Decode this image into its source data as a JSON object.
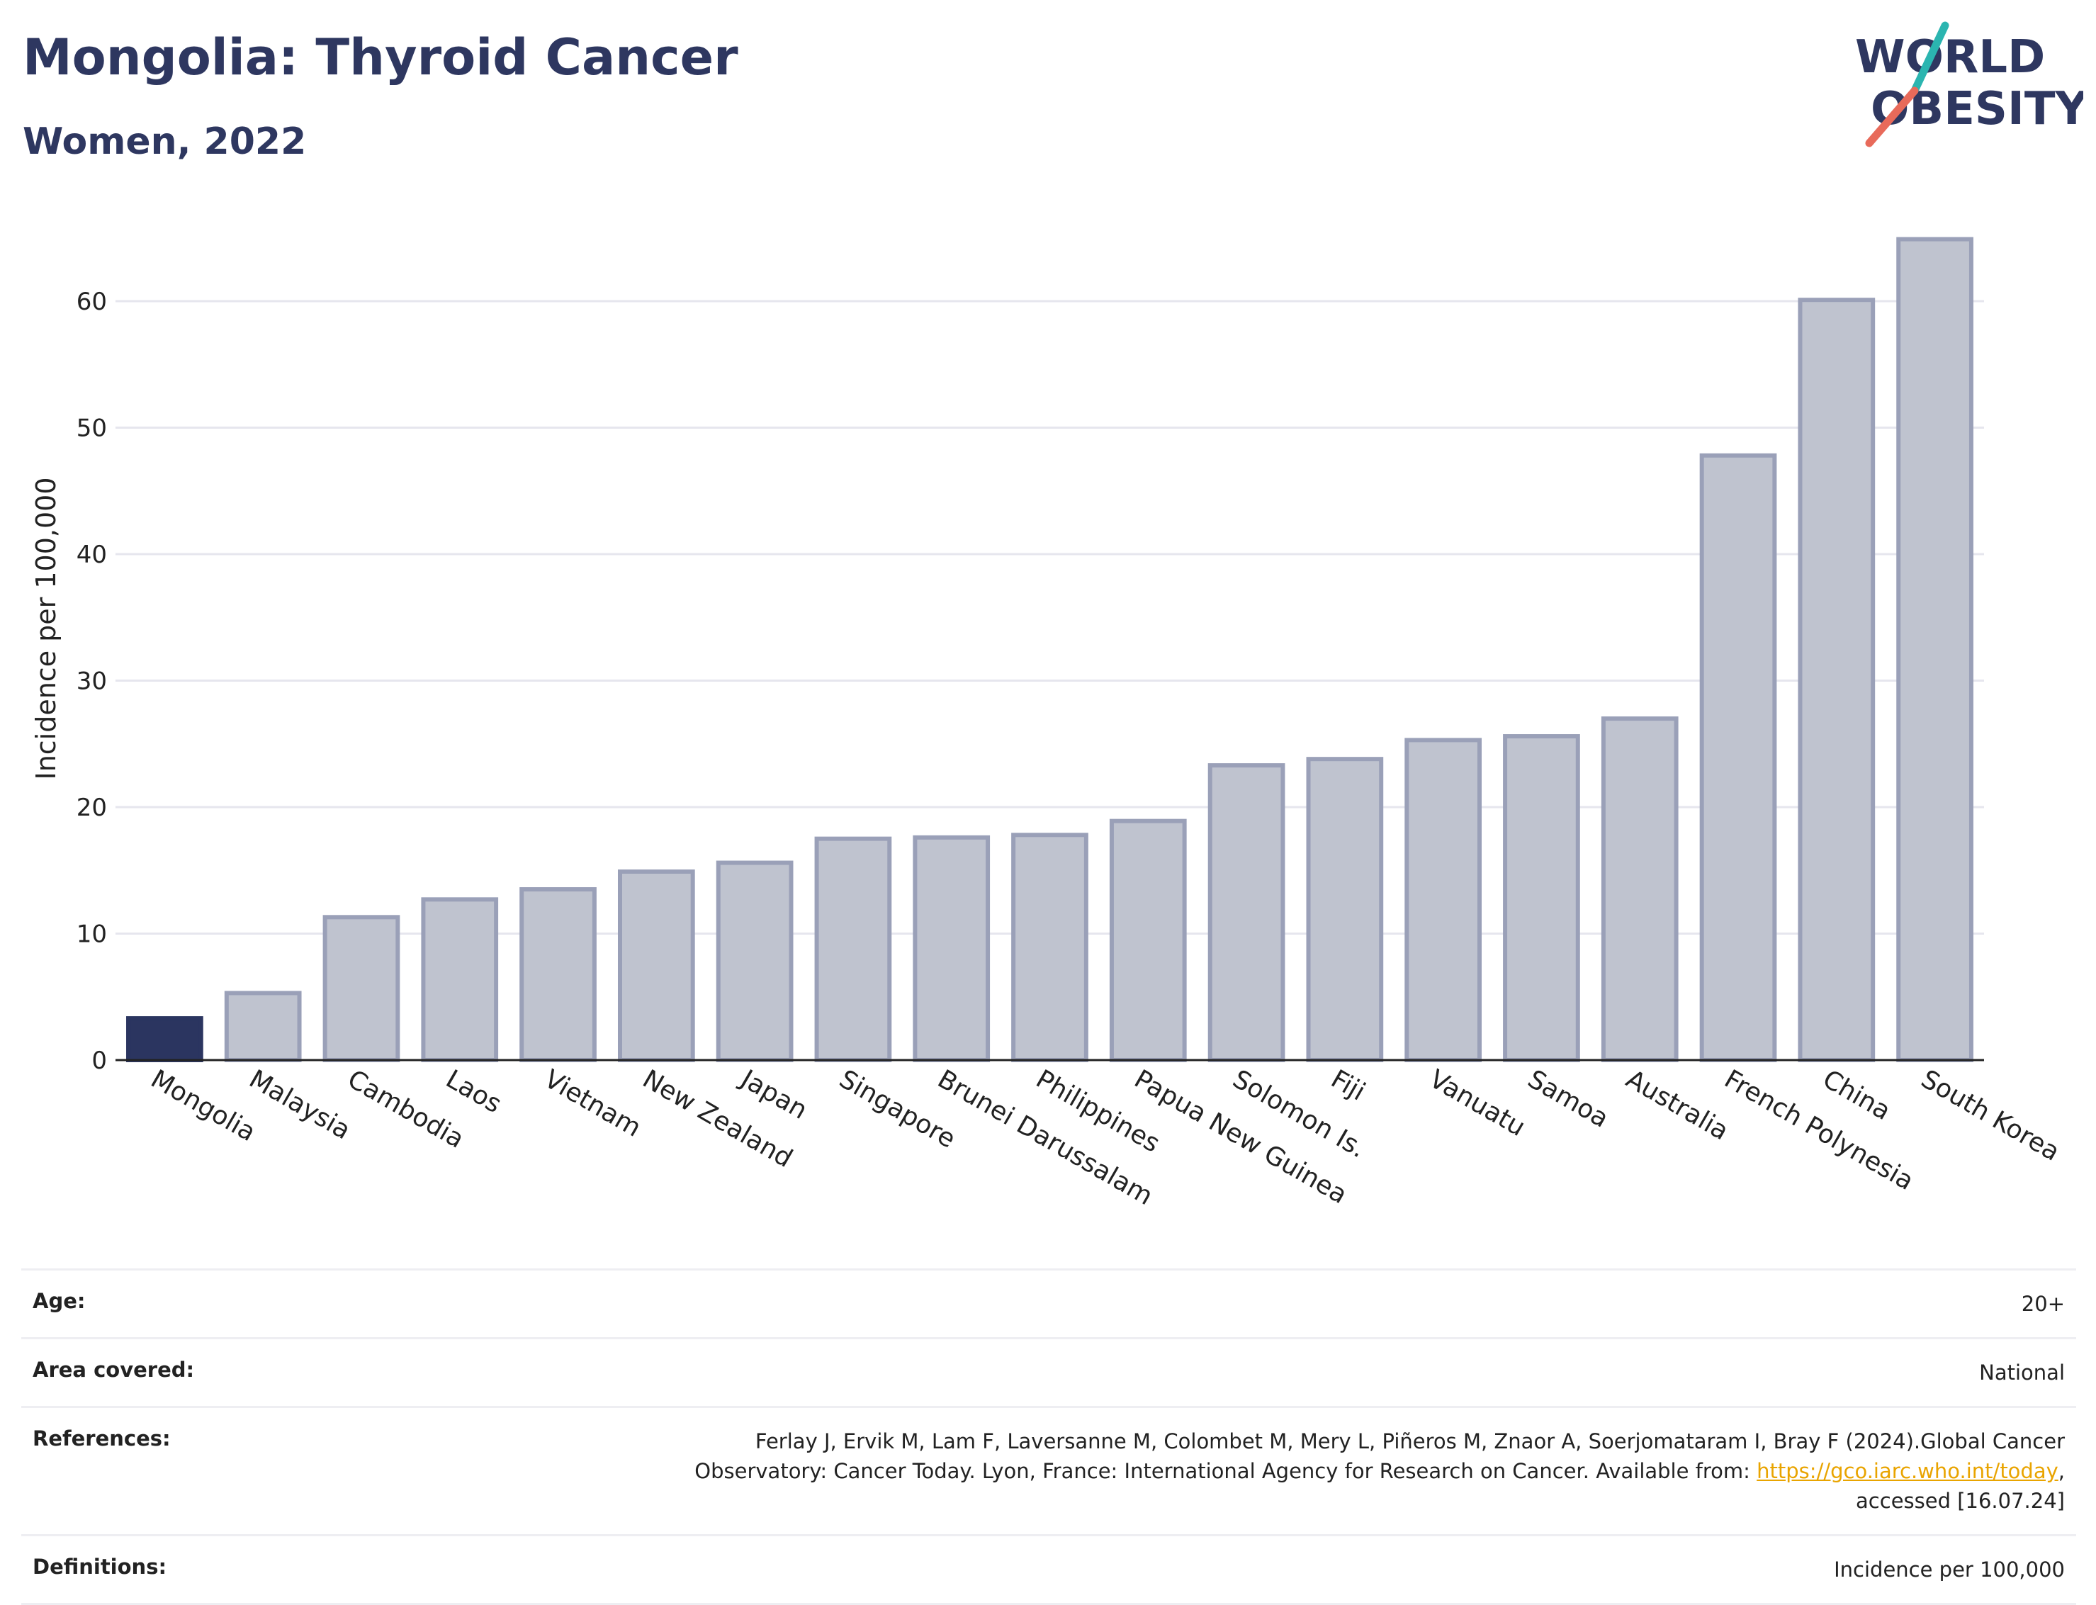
{
  "title": "Mongolia: Thyroid Cancer",
  "subtitle": "Women, 2022",
  "logo": {
    "line1": "WORLD",
    "line2": "OBESITY"
  },
  "colors": {
    "highlight": "#2b3560",
    "bar_fill": "#bfc3cf",
    "bar_stroke": "#9aa0b8",
    "grid": "#e6e6ee",
    "logo_text": "#2e3760",
    "logo_teal": "#2bb5b0",
    "logo_coral": "#e86a5a"
  },
  "chart_data": {
    "type": "bar",
    "ylabel": "Incidence per 100,000",
    "xlabel": "",
    "ylim": [
      0,
      68
    ],
    "yticks": [
      0,
      10,
      20,
      30,
      40,
      50,
      60
    ],
    "grid": true,
    "highlight_category": "Mongolia",
    "categories": [
      "Mongolia",
      "Malaysia",
      "Cambodia",
      "Laos",
      "Vietnam",
      "New Zealand",
      "Japan",
      "Singapore",
      "Brunei Darussalam",
      "Philippines",
      "Papua New Guinea",
      "Solomon Is.",
      "Fiji",
      "Vanuatu",
      "Samoa",
      "Australia",
      "French Polynesia",
      "China",
      "South Korea"
    ],
    "values": [
      3.3,
      5.3,
      11.3,
      12.7,
      13.5,
      14.9,
      15.6,
      17.5,
      17.6,
      17.8,
      18.9,
      23.3,
      23.8,
      25.3,
      25.6,
      27.0,
      47.8,
      60.1,
      64.9
    ]
  },
  "meta": {
    "age_label": "Age:",
    "age_value": "20+",
    "area_label": "Area covered:",
    "area_value": "National",
    "references_label": "References:",
    "references_line1": "Ferlay J, Ervik M, Lam F, Laversanne M, Colombet M, Mery L, Piñeros M, Znaor A, Soerjomataram I, Bray F (2024).Global Cancer",
    "references_line2_prefix": "Observatory: Cancer Today. Lyon, France: International Agency for Research on Cancer. Available from: ",
    "references_link": "https://gco.iarc.who.int/today",
    "references_line2_suffix": ",",
    "references_line3": "accessed [16.07.24]",
    "definitions_label": "Definitions:",
    "definitions_value": "Incidence per 100,000"
  }
}
